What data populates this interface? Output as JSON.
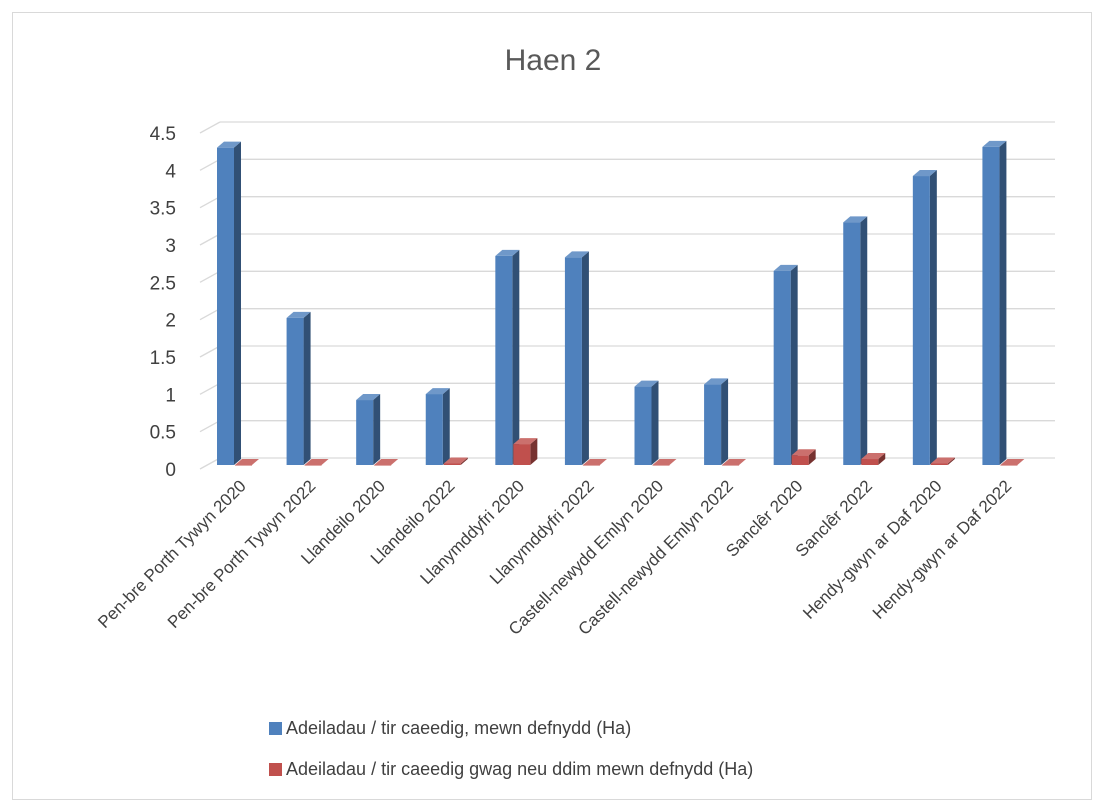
{
  "chart_data": {
    "type": "bar",
    "title": "Haen 2",
    "xlabel": "",
    "ylabel": "",
    "ylim": [
      0,
      4.5
    ],
    "yticks": [
      "0",
      "0.5",
      "1",
      "1.5",
      "2",
      "2.5",
      "3",
      "3.5",
      "4",
      "4.5"
    ],
    "grid": true,
    "legend_position": "bottom",
    "categories": [
      "Pen-bre Porth Tywyn 2020",
      "Pen-bre Porth Tywyn 2022",
      "Llandeilo 2020",
      "Llandeilo 2022",
      "Llanymddyfri 2020",
      "Llanymddyfri 2022",
      "Castell-newydd Emlyn 2020",
      "Castell-newydd Emlyn 2022",
      "Sanclêr  2020",
      "Sanclêr  2022",
      "Hendy-gwyn ar Daf  2020",
      "Hendy-gwyn ar Daf  2022"
    ],
    "series": [
      {
        "name": "Adeiladau / tir caeedig, mewn defnydd (Ha)",
        "color": "#4f81bd",
        "values": [
          4.25,
          1.97,
          0.87,
          0.95,
          2.8,
          2.78,
          1.05,
          1.08,
          2.6,
          3.25,
          3.87,
          4.26
        ]
      },
      {
        "name": "Adeiladau / tir caeedig gwag neu ddim mewn defnydd (Ha)",
        "color": "#c0504d",
        "values": [
          0,
          0,
          0,
          0.02,
          0.28,
          0,
          0,
          0,
          0.13,
          0.08,
          0.02,
          0
        ]
      }
    ]
  }
}
